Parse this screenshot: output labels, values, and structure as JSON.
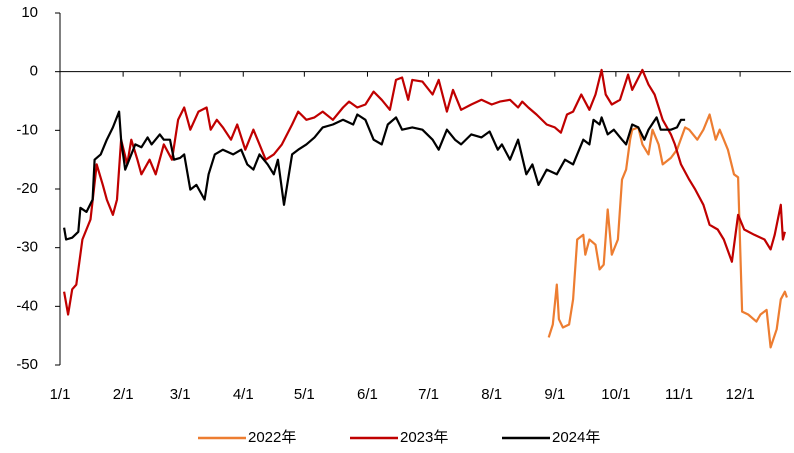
{
  "chart_data": {
    "type": "line",
    "xlim": [
      1,
      360
    ],
    "ylim": [
      -50,
      10
    ],
    "yticks": [
      10,
      0,
      -10,
      -20,
      -30,
      -40,
      -50
    ],
    "xticks": [
      {
        "value": 1,
        "label": "1/1"
      },
      {
        "value": 32,
        "label": "2/1"
      },
      {
        "value": 60,
        "label": "3/1"
      },
      {
        "value": 91,
        "label": "4/1"
      },
      {
        "value": 121,
        "label": "5/1"
      },
      {
        "value": 152,
        "label": "6/1"
      },
      {
        "value": 182,
        "label": "7/1"
      },
      {
        "value": 213,
        "label": "8/1"
      },
      {
        "value": 244,
        "label": "9/1"
      },
      {
        "value": 274,
        "label": "10/1"
      },
      {
        "value": 305,
        "label": "11/1"
      },
      {
        "value": 335,
        "label": "12/1"
      }
    ],
    "series": [
      {
        "name": "2022年",
        "color": "#ed7d31",
        "x": [
          241,
          243,
          245,
          246,
          248,
          251,
          253,
          255,
          258,
          259,
          261,
          264,
          266,
          268,
          270,
          272,
          275,
          277,
          279,
          281,
          282,
          285,
          287,
          290,
          292,
          295,
          297,
          301,
          304,
          308,
          310,
          314,
          317,
          320,
          323,
          325,
          329,
          332,
          334,
          336,
          339,
          343,
          345,
          348,
          350,
          353,
          355,
          357,
          358
        ],
        "values": [
          -45.3,
          -43.1,
          -36.3,
          -42.2,
          -43.6,
          -43.1,
          -38.8,
          -28.6,
          -27.8,
          -31.2,
          -28.6,
          -29.5,
          -33.7,
          -32.9,
          -23.5,
          -31.2,
          -28.6,
          -18.4,
          -16.7,
          -11.6,
          -9.9,
          -9.5,
          -12.4,
          -14.1,
          -9.9,
          -12.4,
          -15.8,
          -14.7,
          -13.3,
          -9.5,
          -9.9,
          -11.6,
          -9.9,
          -7.3,
          -11.6,
          -9.9,
          -13.3,
          -17.5,
          -18,
          -40.9,
          -41.4,
          -42.6,
          -41.4,
          -40.6,
          -47,
          -43.9,
          -38.8,
          -37.5,
          -38.5
        ]
      },
      {
        "name": "2023年",
        "color": "#c00000",
        "x": [
          3,
          5,
          7,
          9,
          12,
          16,
          19,
          22,
          24,
          27,
          29,
          31,
          34,
          36,
          39,
          41,
          45,
          48,
          52,
          56,
          59,
          62,
          65,
          69,
          73,
          75,
          78,
          81,
          85,
          88,
          92,
          96,
          99,
          102,
          106,
          110,
          115,
          118,
          122,
          126,
          130,
          135,
          140,
          143,
          147,
          151,
          155,
          159,
          163,
          166,
          169,
          172,
          174,
          179,
          184,
          187,
          191,
          194,
          198,
          203,
          208,
          213,
          217,
          222,
          226,
          228,
          231,
          235,
          240,
          244,
          247,
          250,
          253,
          257,
          261,
          264,
          267,
          269,
          272,
          276,
          280,
          282,
          287,
          290,
          293,
          297,
          301,
          303,
          306,
          310,
          313,
          317,
          320,
          324,
          327,
          331,
          334,
          337,
          342,
          347,
          350,
          352,
          355,
          356,
          357
        ],
        "values": [
          -37.5,
          -41.4,
          -37.1,
          -36.3,
          -28.6,
          -25.2,
          -15.8,
          -19.3,
          -21.8,
          -24.4,
          -21.8,
          -11.6,
          -15.8,
          -11.6,
          -15,
          -17.5,
          -15,
          -17.5,
          -12.4,
          -15,
          -8.2,
          -6.1,
          -9.9,
          -6.8,
          -6.1,
          -9.9,
          -8.2,
          -9.5,
          -11.6,
          -9,
          -13.3,
          -9.9,
          -12.4,
          -15,
          -14.1,
          -12.4,
          -9,
          -6.8,
          -8.2,
          -7.8,
          -6.8,
          -8.2,
          -6.1,
          -5.1,
          -6.1,
          -5.6,
          -3.4,
          -4.8,
          -6.5,
          -1.4,
          -1,
          -4.8,
          -1.4,
          -1.7,
          -3.9,
          -1.4,
          -6.8,
          -3.1,
          -6.5,
          -5.6,
          -4.8,
          -5.6,
          -5.1,
          -4.8,
          -6.1,
          -5.1,
          -6.1,
          -7.3,
          -9,
          -9.5,
          -10.4,
          -7.3,
          -6.8,
          -3.9,
          -6.5,
          -3.9,
          0.3,
          -3.9,
          -5.6,
          -4.8,
          -0.5,
          -3.1,
          0.3,
          -2.2,
          -3.9,
          -8.2,
          -10.7,
          -12.4,
          -15.8,
          -18.4,
          -20.1,
          -22.7,
          -26.1,
          -26.9,
          -28.6,
          -32.4,
          -24.4,
          -26.9,
          -27.8,
          -28.6,
          -30.3,
          -27.8,
          -22.7,
          -28.6,
          -27.3
        ]
      },
      {
        "name": "2024年",
        "color": "#000000",
        "x": [
          3,
          4,
          7,
          10,
          11,
          14,
          17,
          18,
          21,
          24,
          27,
          30,
          31,
          33,
          35,
          38,
          41,
          44,
          46,
          50,
          52,
          55,
          57,
          60,
          62,
          65,
          68,
          72,
          74,
          77,
          81,
          86,
          90,
          93,
          96,
          99,
          103,
          106,
          108,
          111,
          115,
          118,
          122,
          126,
          130,
          135,
          140,
          145,
          147,
          151,
          155,
          159,
          162,
          166,
          169,
          174,
          179,
          184,
          187,
          191,
          195,
          198,
          203,
          208,
          212,
          216,
          218,
          222,
          226,
          230,
          233,
          236,
          240,
          245,
          249,
          253,
          255,
          258,
          261,
          263,
          266,
          267,
          270,
          273,
          277,
          279,
          282,
          285,
          288,
          290,
          294,
          296,
          301,
          304,
          306,
          308
        ],
        "values": [
          -26.6,
          -28.6,
          -28.3,
          -27.3,
          -23.2,
          -23.9,
          -21.8,
          -15,
          -14.1,
          -11.6,
          -9.5,
          -6.8,
          -11.6,
          -16.7,
          -15,
          -12.4,
          -12.9,
          -11.2,
          -12.4,
          -10.7,
          -11.6,
          -11.6,
          -15,
          -14.7,
          -14.1,
          -20.1,
          -19.3,
          -21.8,
          -17.5,
          -14.1,
          -13.3,
          -14.1,
          -13.3,
          -15.8,
          -16.7,
          -14.1,
          -15.8,
          -17.5,
          -15,
          -22.7,
          -14.1,
          -13.3,
          -12.4,
          -11.2,
          -9.5,
          -9,
          -8.2,
          -9,
          -7.3,
          -8.2,
          -11.6,
          -12.4,
          -9,
          -7.8,
          -9.9,
          -9.5,
          -9.9,
          -11.6,
          -13.3,
          -9.9,
          -11.6,
          -12.4,
          -10.7,
          -11.2,
          -10.2,
          -13.3,
          -12.4,
          -15,
          -11.6,
          -17.5,
          -15.8,
          -19.3,
          -16.7,
          -17.5,
          -15,
          -15.8,
          -14.1,
          -11.6,
          -12.4,
          -8.2,
          -9,
          -7.8,
          -10.7,
          -9.9,
          -11.6,
          -12.4,
          -9,
          -9.5,
          -11.6,
          -9.9,
          -7.8,
          -9.9,
          -9.9,
          -9.5,
          -8.2,
          -8.2
        ]
      }
    ]
  }
}
